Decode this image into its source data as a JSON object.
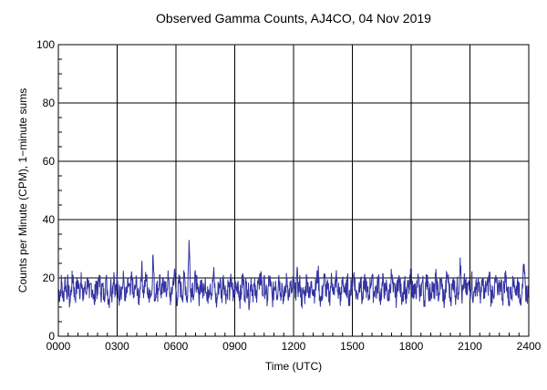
{
  "chart_data": {
    "type": "line",
    "title": "Observed Gamma Counts, AJ4CO, 04 Nov 2019",
    "xlabel": "Time (UTC)",
    "ylabel": "Counts per Minute (CPM), 1−minute sums",
    "x_tick_labels": [
      "0000",
      "0300",
      "0600",
      "0900",
      "1200",
      "1500",
      "1800",
      "2100",
      "2400"
    ],
    "x_tick_values": [
      0,
      180,
      360,
      540,
      720,
      900,
      1080,
      1260,
      1440
    ],
    "xlim": [
      0,
      1440
    ],
    "y_tick_labels": [
      "0",
      "20",
      "40",
      "60",
      "80",
      "100"
    ],
    "y_tick_values": [
      0,
      20,
      40,
      60,
      80,
      100
    ],
    "ylim": [
      0,
      100
    ],
    "grid": true,
    "x_minor_step": 30,
    "y_minor_step": 5,
    "series": [
      {
        "color": "#3333a0",
        "x_step_minutes": 5,
        "values": [
          16,
          14,
          19,
          12,
          20,
          15,
          18,
          11,
          17,
          21,
          13,
          16,
          19,
          14,
          22,
          12,
          17,
          15,
          20,
          13,
          18,
          16,
          11,
          19,
          14,
          21,
          15,
          17,
          13,
          20,
          16,
          12,
          18,
          15,
          22,
          14,
          19,
          13,
          17,
          16,
          20,
          12,
          15,
          18,
          14,
          21,
          13,
          16,
          19,
          11,
          17,
          24,
          15,
          18,
          20,
          13,
          16,
          14,
          28,
          12,
          18,
          15,
          21,
          13,
          17,
          19,
          14,
          20,
          16,
          12,
          18,
          22,
          15,
          13,
          19,
          16,
          14,
          20,
          17,
          12,
          33,
          15,
          18,
          14,
          21,
          16,
          13,
          19,
          15,
          17,
          20,
          12,
          16,
          18,
          14,
          22,
          15,
          11,
          17,
          19,
          13,
          21,
          16,
          14,
          18,
          15,
          20,
          12,
          17,
          16,
          19,
          13,
          15,
          21,
          14,
          18,
          16,
          12,
          20,
          15,
          17,
          13,
          19,
          16,
          22,
          14,
          18,
          15,
          12,
          20,
          17,
          13,
          16,
          19,
          14,
          21,
          15,
          18,
          12,
          16,
          20,
          14,
          17,
          15,
          19,
          13,
          21,
          16,
          18,
          12,
          15,
          14,
          20,
          17,
          13,
          19,
          16,
          15,
          18,
          22,
          14,
          12,
          17,
          20,
          15,
          16,
          13,
          19,
          18,
          14,
          21,
          15,
          16,
          12,
          20,
          17,
          14,
          19,
          13,
          16,
          18,
          22,
          15,
          14,
          17,
          20,
          12,
          16,
          19,
          15,
          13,
          18,
          21,
          14,
          17,
          15,
          20,
          13,
          16,
          19,
          14,
          18,
          12,
          17,
          21,
          15,
          16,
          13,
          20,
          18,
          14,
          15,
          19,
          12,
          17,
          16,
          22,
          14,
          18,
          13,
          20,
          15,
          16,
          19,
          12,
          17,
          21,
          14,
          15,
          18,
          13,
          20,
          16,
          14,
          19,
          17,
          12,
          15,
          21,
          18,
          13,
          16,
          20,
          14,
          17,
          15,
          27,
          13,
          16,
          19,
          14,
          18,
          15,
          21,
          12,
          17,
          16,
          20,
          14,
          15,
          19,
          13,
          18,
          16,
          22,
          12,
          17,
          15,
          20,
          14,
          16,
          19,
          13,
          18,
          21,
          15,
          12,
          17,
          16,
          20,
          14,
          19,
          15,
          13,
          18,
          22,
          16,
          14,
          17,
          20,
          12,
          15,
          19,
          16,
          13,
          21,
          18,
          14,
          17,
          15,
          20,
          13,
          16,
          19,
          12,
          18
        ]
      }
    ]
  }
}
